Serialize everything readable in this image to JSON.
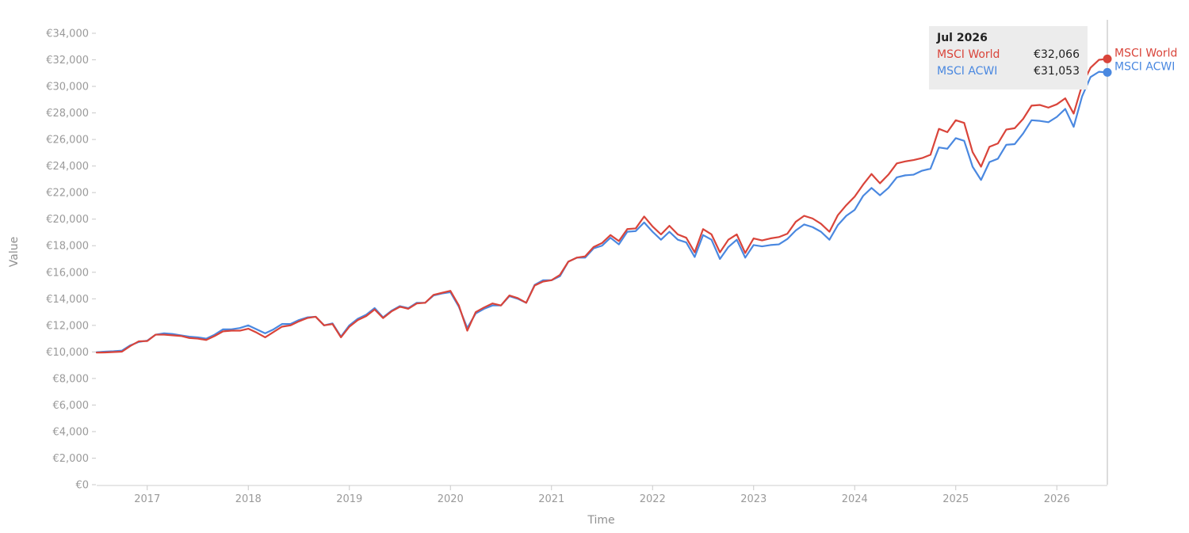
{
  "chart_data": {
    "type": "line",
    "xlabel": "Time",
    "ylabel": "Value",
    "x_tick_labels": [
      "2017",
      "2018",
      "2019",
      "2020",
      "2021",
      "2022",
      "2023",
      "2024",
      "2025",
      "2026"
    ],
    "y_tick_labels": [
      "€0",
      "€2,000",
      "€4,000",
      "€6,000",
      "€8,000",
      "€10,000",
      "€12,000",
      "€14,000",
      "€16,000",
      "€18,000",
      "€20,000",
      "€22,000",
      "€24,000",
      "€26,000",
      "€28,000",
      "€30,000",
      "€32,000",
      "€34,000"
    ],
    "ylim": [
      0,
      34000
    ],
    "x_start": "Jul 2016",
    "x_end": "Jul 2026",
    "x_range": [
      "Jul 2016",
      "Jul 2026"
    ],
    "grid": false,
    "series": [
      {
        "name": "MSCI World",
        "color": "#d9443a",
        "x": [
          "2016-07",
          "2016-08",
          "2016-09",
          "2016-10",
          "2016-11",
          "2016-12",
          "2017-01",
          "2017-02",
          "2017-03",
          "2017-04",
          "2017-05",
          "2017-06",
          "2017-07",
          "2017-08",
          "2017-09",
          "2017-10",
          "2017-11",
          "2017-12",
          "2018-01",
          "2018-02",
          "2018-03",
          "2018-04",
          "2018-05",
          "2018-06",
          "2018-07",
          "2018-08",
          "2018-09",
          "2018-10",
          "2018-11",
          "2018-12",
          "2019-01",
          "2019-02",
          "2019-03",
          "2019-04",
          "2019-05",
          "2019-06",
          "2019-07",
          "2019-08",
          "2019-09",
          "2019-10",
          "2019-11",
          "2019-12",
          "2020-01",
          "2020-02",
          "2020-03",
          "2020-04",
          "2020-05",
          "2020-06",
          "2020-07",
          "2020-08",
          "2020-09",
          "2020-10",
          "2020-11",
          "2020-12",
          "2021-01",
          "2021-02",
          "2021-03",
          "2021-04",
          "2021-05",
          "2021-06",
          "2021-07",
          "2021-08",
          "2021-09",
          "2021-10",
          "2021-11",
          "2021-12",
          "2022-01",
          "2022-02",
          "2022-03",
          "2022-04",
          "2022-05",
          "2022-06",
          "2022-07",
          "2022-08",
          "2022-09",
          "2022-10",
          "2022-11",
          "2022-12",
          "2023-01",
          "2023-02",
          "2023-03",
          "2023-04",
          "2023-05",
          "2023-06",
          "2023-07",
          "2023-08",
          "2023-09",
          "2023-10",
          "2023-11",
          "2023-12",
          "2024-01",
          "2024-02",
          "2024-03",
          "2024-04",
          "2024-05",
          "2024-06",
          "2024-07",
          "2024-08",
          "2024-09",
          "2024-10",
          "2024-11",
          "2024-12",
          "2025-01",
          "2025-02",
          "2025-03",
          "2025-04",
          "2025-05",
          "2025-06",
          "2025-07",
          "2025-08",
          "2025-09",
          "2025-10",
          "2025-11",
          "2025-12",
          "2026-01",
          "2026-02",
          "2026-03",
          "2026-04",
          "2026-05",
          "2026-06",
          "2026-07"
        ],
        "values": [
          9950,
          9960,
          9990,
          10020,
          10450,
          10800,
          10820,
          11300,
          11300,
          11250,
          11200,
          11050,
          11000,
          10900,
          11200,
          11550,
          11600,
          11600,
          11750,
          11450,
          11100,
          11500,
          11900,
          12000,
          12300,
          12550,
          12650,
          12000,
          12100,
          11100,
          11900,
          12400,
          12700,
          13200,
          12550,
          13050,
          13400,
          13250,
          13650,
          13700,
          14300,
          14450,
          14600,
          13500,
          11600,
          13000,
          13350,
          13650,
          13500,
          14250,
          14050,
          13700,
          15000,
          15300,
          15400,
          15800,
          16800,
          17100,
          17200,
          17900,
          18200,
          18800,
          18350,
          19250,
          19300,
          20200,
          19450,
          18850,
          19500,
          18850,
          18600,
          17500,
          19250,
          18850,
          17500,
          18450,
          18850,
          17450,
          18550,
          18400,
          18550,
          18650,
          18900,
          19800,
          20250,
          20050,
          19650,
          19050,
          20300,
          21050,
          21700,
          22600,
          23400,
          22700,
          23350,
          24200,
          24350,
          24450,
          24600,
          24850,
          26800,
          26550,
          27450,
          27250,
          25050,
          23950,
          25450,
          25700,
          26750,
          26850,
          27550,
          28550,
          28600,
          28400,
          28650,
          29100,
          27950,
          30100,
          31400,
          32000,
          32066
        ]
      },
      {
        "name": "MSCI ACWI",
        "color": "#4a88e0",
        "x": [
          "2016-07",
          "2016-08",
          "2016-09",
          "2016-10",
          "2016-11",
          "2016-12",
          "2017-01",
          "2017-02",
          "2017-03",
          "2017-04",
          "2017-05",
          "2017-06",
          "2017-07",
          "2017-08",
          "2017-09",
          "2017-10",
          "2017-11",
          "2017-12",
          "2018-01",
          "2018-02",
          "2018-03",
          "2018-04",
          "2018-05",
          "2018-06",
          "2018-07",
          "2018-08",
          "2018-09",
          "2018-10",
          "2018-11",
          "2018-12",
          "2019-01",
          "2019-02",
          "2019-03",
          "2019-04",
          "2019-05",
          "2019-06",
          "2019-07",
          "2019-08",
          "2019-09",
          "2019-10",
          "2019-11",
          "2019-12",
          "2020-01",
          "2020-02",
          "2020-03",
          "2020-04",
          "2020-05",
          "2020-06",
          "2020-07",
          "2020-08",
          "2020-09",
          "2020-10",
          "2020-11",
          "2020-12",
          "2021-01",
          "2021-02",
          "2021-03",
          "2021-04",
          "2021-05",
          "2021-06",
          "2021-07",
          "2021-08",
          "2021-09",
          "2021-10",
          "2021-11",
          "2021-12",
          "2022-01",
          "2022-02",
          "2022-03",
          "2022-04",
          "2022-05",
          "2022-06",
          "2022-07",
          "2022-08",
          "2022-09",
          "2022-10",
          "2022-11",
          "2022-12",
          "2023-01",
          "2023-02",
          "2023-03",
          "2023-04",
          "2023-05",
          "2023-06",
          "2023-07",
          "2023-08",
          "2023-09",
          "2023-10",
          "2023-11",
          "2023-12",
          "2024-01",
          "2024-02",
          "2024-03",
          "2024-04",
          "2024-05",
          "2024-06",
          "2024-07",
          "2024-08",
          "2024-09",
          "2024-10",
          "2024-11",
          "2024-12",
          "2025-01",
          "2025-02",
          "2025-03",
          "2025-04",
          "2025-05",
          "2025-06",
          "2025-07",
          "2025-08",
          "2025-09",
          "2025-10",
          "2025-11",
          "2025-12",
          "2026-01",
          "2026-02",
          "2026-03",
          "2026-04",
          "2026-05",
          "2026-06",
          "2026-07"
        ],
        "values": [
          9980,
          10020,
          10050,
          10100,
          10500,
          10750,
          10850,
          11300,
          11400,
          11350,
          11250,
          11150,
          11100,
          11000,
          11300,
          11700,
          11700,
          11800,
          12000,
          11700,
          11400,
          11700,
          12100,
          12100,
          12400,
          12600,
          12650,
          12000,
          12150,
          11150,
          12000,
          12500,
          12800,
          13300,
          12600,
          13100,
          13450,
          13300,
          13700,
          13700,
          14250,
          14400,
          14500,
          13400,
          11800,
          12900,
          13250,
          13500,
          13500,
          14200,
          14000,
          13700,
          15050,
          15400,
          15400,
          15700,
          16800,
          17100,
          17100,
          17800,
          18000,
          18600,
          18100,
          19050,
          19100,
          19750,
          19050,
          18450,
          19050,
          18450,
          18250,
          17150,
          18800,
          18450,
          17000,
          17900,
          18450,
          17100,
          18050,
          17950,
          18050,
          18100,
          18500,
          19150,
          19600,
          19400,
          19050,
          18450,
          19550,
          20250,
          20700,
          21750,
          22350,
          21800,
          22350,
          23150,
          23300,
          23350,
          23650,
          23800,
          25400,
          25300,
          26100,
          25900,
          23950,
          22950,
          24300,
          24550,
          25600,
          25650,
          26450,
          27450,
          27400,
          27300,
          27700,
          28300,
          26950,
          29250,
          30700,
          31100,
          31053
        ]
      }
    ]
  },
  "tooltip": {
    "title": "Jul 2026",
    "rows": [
      {
        "label": "MSCI World",
        "value": "€32,066"
      },
      {
        "label": "MSCI ACWI",
        "value": "€31,053"
      }
    ]
  }
}
